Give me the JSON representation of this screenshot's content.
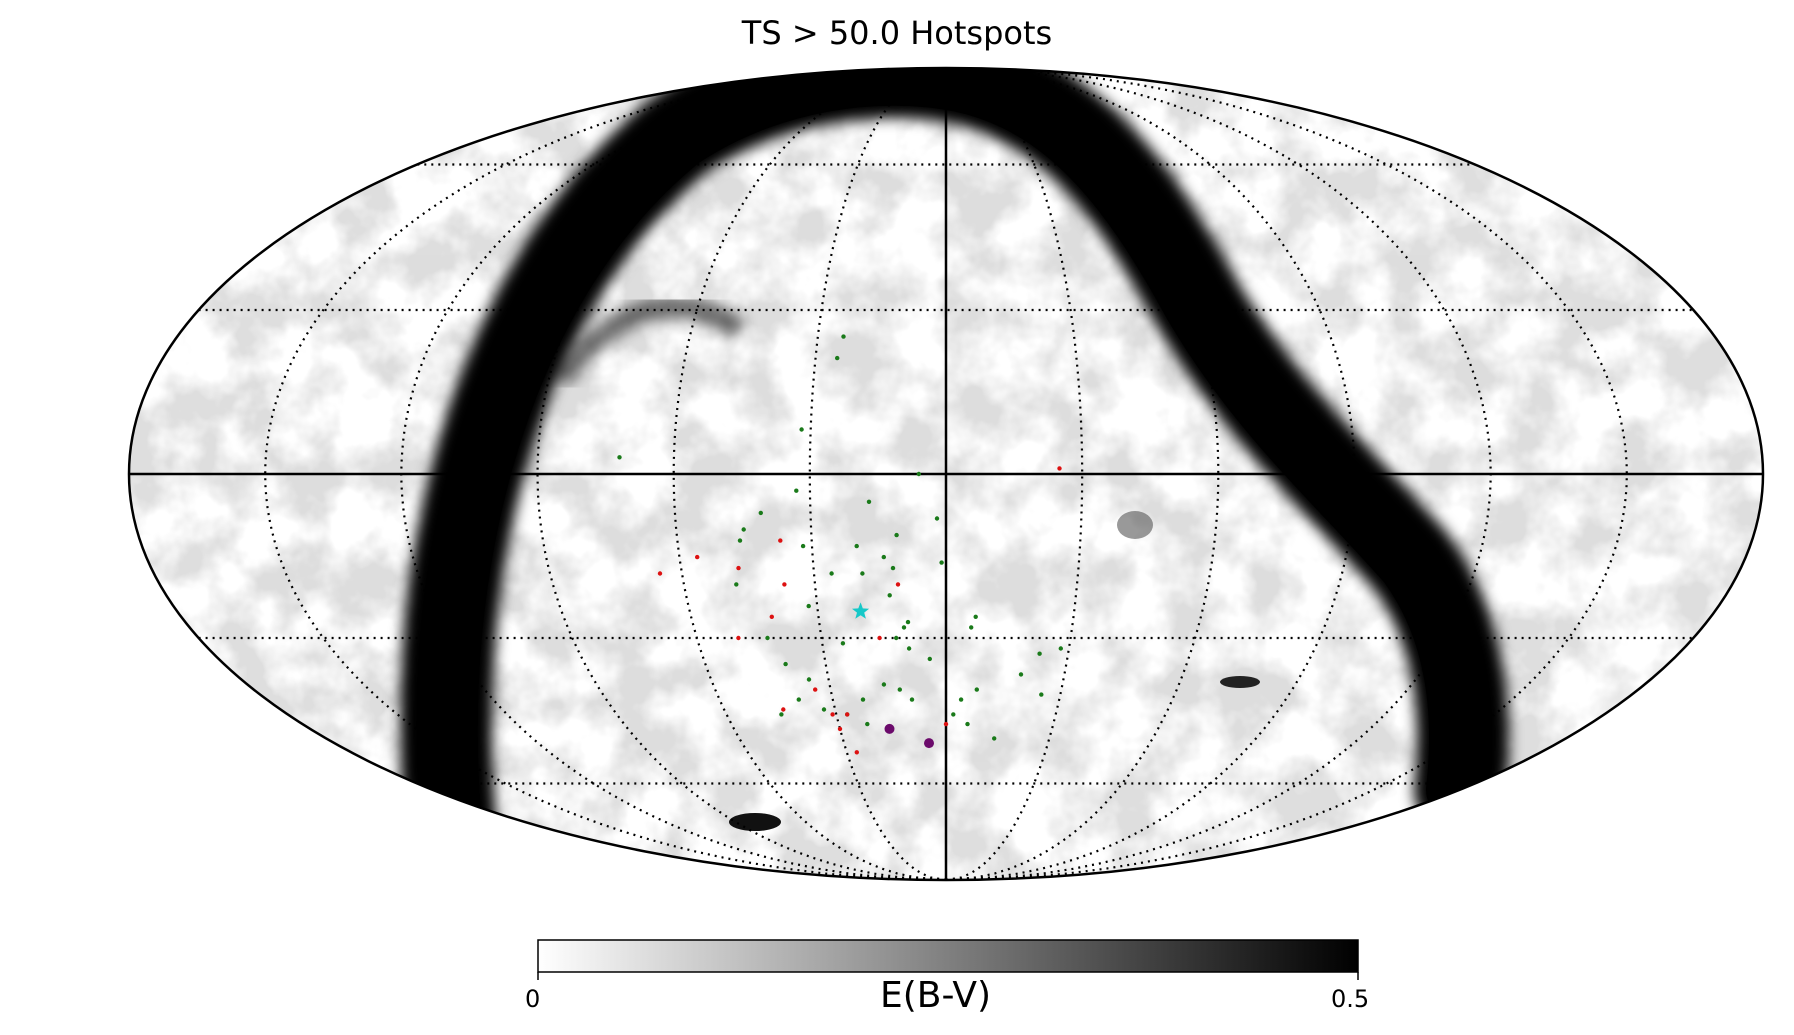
{
  "chart_data": {
    "type": "scatter",
    "title": "TS > 50.0 Hotspots",
    "projection": "mollweide",
    "background_map": "dust reddening E(B-V), grayscale",
    "colorbar": {
      "label": "E(B-V)",
      "min_label": "0",
      "max_label": "0.5",
      "range": [
        0,
        0.5
      ],
      "cmap": "gray_r"
    },
    "grid": true,
    "colors": {
      "green": "#1a7a1a",
      "red": "#dd1111",
      "purple": "#6b0a6b",
      "cyan": "#16c8c8"
    },
    "series": [
      {
        "marker": "dot",
        "color": "green",
        "points": [
          [
            -72,
            3
          ],
          [
            -24,
            25
          ],
          [
            -25,
            21
          ],
          [
            -32,
            8
          ],
          [
            -33,
            -3
          ],
          [
            -32,
            -13
          ],
          [
            -46,
            -12
          ],
          [
            -48,
            -20
          ],
          [
            -41,
            -7
          ],
          [
            -45,
            -10
          ],
          [
            -43,
            -30
          ],
          [
            -40,
            -35
          ],
          [
            -35,
            -38
          ],
          [
            -39,
            -42
          ],
          [
            -45,
            -45
          ],
          [
            -33,
            -44
          ],
          [
            -27,
            -45
          ],
          [
            -22,
            -47
          ],
          [
            -22,
            -42
          ],
          [
            -25,
            -31
          ],
          [
            -16,
            -39
          ],
          [
            -12,
            -40
          ],
          [
            -9,
            -32
          ],
          [
            -12,
            -30
          ],
          [
            -10,
            -28
          ],
          [
            -4,
            -34
          ],
          [
            -19,
            -18
          ],
          [
            -20,
            -13
          ],
          [
            -9,
            -27
          ],
          [
            -13,
            -22
          ],
          [
            -12,
            -17
          ],
          [
            -11,
            -11
          ],
          [
            -17,
            -5
          ],
          [
            -6,
            0
          ],
          [
            -2,
            -8
          ],
          [
            -1,
            -16
          ],
          [
            7,
            -26
          ],
          [
            6,
            -28
          ],
          [
            -14,
            -15
          ],
          [
            -26,
            -18
          ],
          [
            -32,
            -24
          ],
          [
            -9,
            -42
          ],
          [
            6,
            -47
          ],
          [
            14,
            -50
          ],
          [
            19,
            -37
          ],
          [
            23,
            -33
          ],
          [
            28,
            -32
          ],
          [
            25,
            -41
          ],
          [
            8,
            -40
          ],
          [
            2,
            -45
          ],
          [
            4,
            -42
          ]
        ]
      },
      {
        "marker": "dot",
        "color": "red",
        "points": [
          [
            -65,
            -18
          ],
          [
            -56,
            -15
          ],
          [
            -47,
            -17
          ],
          [
            -37,
            -12
          ],
          [
            -50,
            -30
          ],
          [
            -41,
            -26
          ],
          [
            -34,
            -40
          ],
          [
            -27,
            -45
          ],
          [
            -31,
            -45
          ],
          [
            -30,
            -48
          ],
          [
            -27,
            -53
          ],
          [
            -37,
            -20
          ],
          [
            -16,
            -30
          ],
          [
            -11,
            -20
          ],
          [
            0,
            -47
          ],
          [
            25,
            1
          ],
          [
            -44,
            -44
          ]
        ]
      },
      {
        "marker": "large-dot",
        "color": "purple",
        "points": [
          [
            -16,
            -48
          ],
          [
            -5,
            -51
          ]
        ]
      },
      {
        "marker": "star",
        "color": "cyan",
        "points": [
          [
            -20,
            -25
          ]
        ]
      }
    ]
  }
}
